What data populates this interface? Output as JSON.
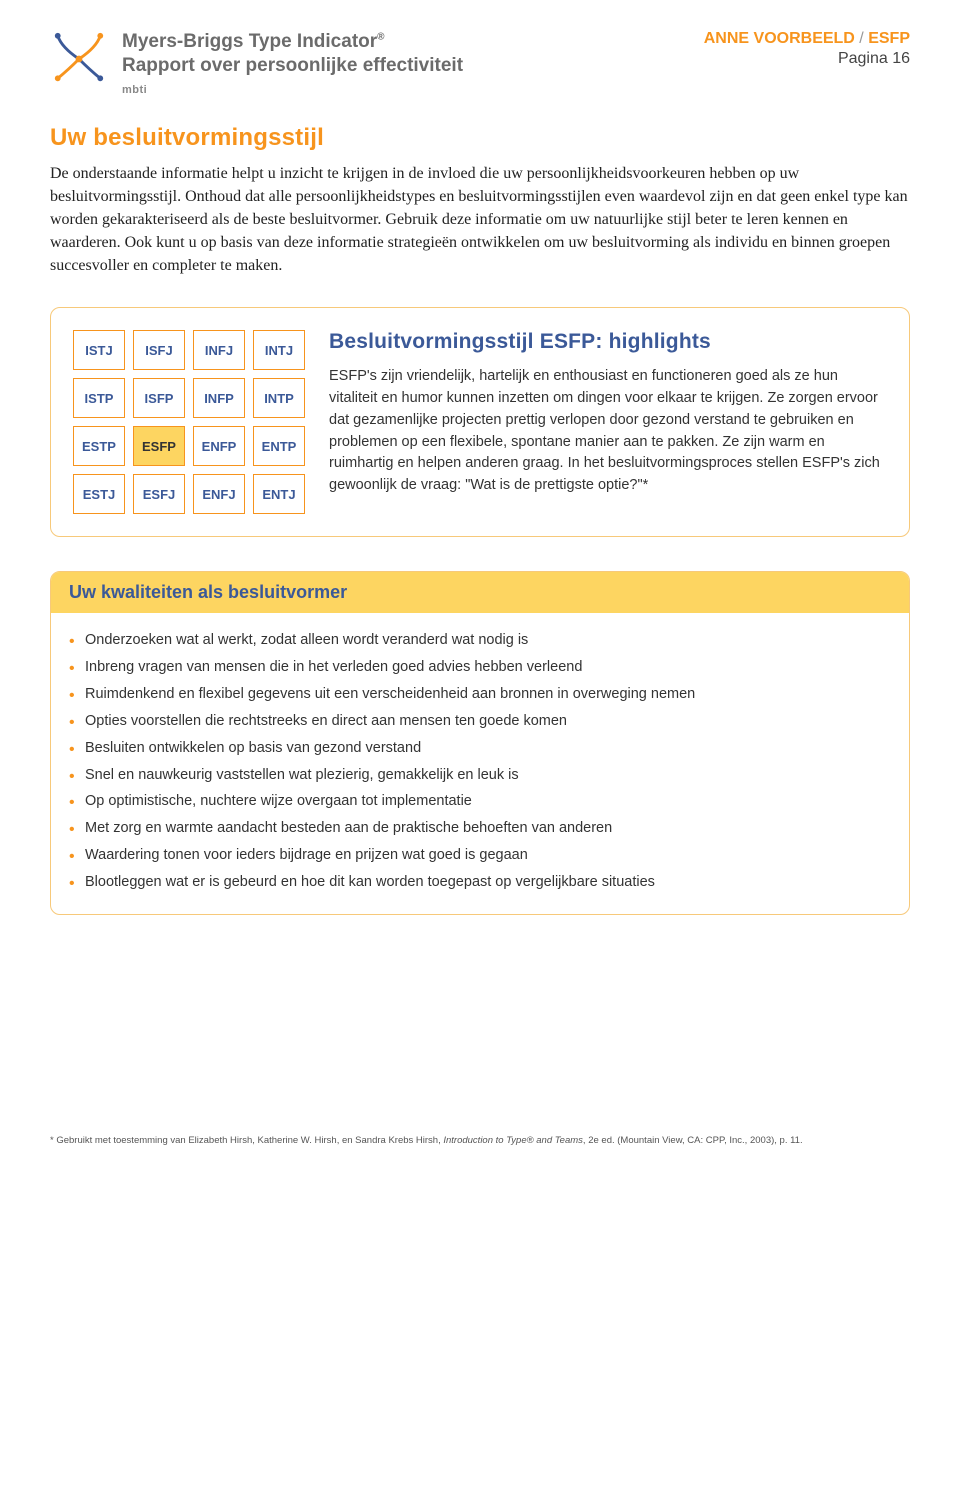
{
  "colors": {
    "accent_orange": "#f7941d",
    "accent_blue": "#3b5998",
    "panel_border": "#f7c97a",
    "highlight_yellow": "#fdd561",
    "text_gray": "#6b6b6b",
    "body_text": "#333333"
  },
  "header": {
    "brand_line1": "Myers-Briggs Type Indicator",
    "brand_reg": "®",
    "brand_line2": "Rapport over persoonlijke effectiviteit",
    "brand_tag": "mbti",
    "name": "ANNE VOORBEELD",
    "sep": " / ",
    "type": "ESFP",
    "page_label": "Pagina 16"
  },
  "section": {
    "title": "Uw besluitvormingsstijl",
    "intro": "De onderstaande informatie helpt u inzicht te krijgen in de invloed die uw persoonlijkheidsvoorkeuren hebben op uw besluitvormingsstijl. Onthoud dat alle persoonlijkheidstypes en besluitvormingsstijlen even waardevol zijn en dat geen enkel type kan worden gekarakteriseerd als de beste besluitvormer. Gebruik deze informatie om uw natuurlijke stijl beter te leren kennen en waarderen. Ook kunt u op basis van deze informatie strategieën ontwikkelen om uw besluitvorming als individu en binnen groepen succesvoller en completer te maken."
  },
  "type_grid": {
    "cells": [
      [
        "ISTJ",
        "ISFJ",
        "INFJ",
        "INTJ"
      ],
      [
        "ISTP",
        "ISFP",
        "INFP",
        "INTP"
      ],
      [
        "ESTP",
        "ESFP",
        "ENFP",
        "ENTP"
      ],
      [
        "ESTJ",
        "ESFJ",
        "ENFJ",
        "ENTJ"
      ]
    ],
    "highlighted": "ESFP"
  },
  "highlights": {
    "title": "Besluitvormingsstijl ESFP: highlights",
    "paragraph": "ESFP's zijn vriendelijk, hartelijk en enthousiast en functioneren goed als ze hun vitaliteit en humor kunnen inzetten om dingen voor elkaar te krijgen. Ze zorgen ervoor dat gezamenlijke projecten prettig verlopen door gezond verstand te gebruiken en problemen op een flexibele, spontane manier aan te pakken. Ze zijn warm en ruimhartig en helpen anderen graag. In het besluitvormingsproces stellen ESFP's zich gewoonlijk de vraag: \"Wat is de prettigste optie?\"*"
  },
  "strengths": {
    "title": "Uw kwaliteiten als besluitvormer",
    "items": [
      "Onderzoeken wat al werkt, zodat alleen wordt veranderd wat nodig is",
      "Inbreng vragen van mensen die in het verleden goed advies hebben verleend",
      "Ruimdenkend en flexibel gegevens uit een verscheidenheid aan bronnen in overweging nemen",
      "Opties voorstellen die rechtstreeks en direct aan mensen ten goede komen",
      "Besluiten ontwikkelen op basis van gezond verstand",
      "Snel en nauwkeurig vaststellen wat plezierig, gemakkelijk en leuk is",
      "Op optimistische, nuchtere wijze overgaan tot implementatie",
      "Met zorg en warmte aandacht besteden aan de praktische behoeften van anderen",
      "Waardering tonen voor ieders bijdrage en prijzen wat goed is gegaan",
      "Blootleggen wat er is gebeurd en hoe dit kan worden toegepast op vergelijkbare situaties"
    ]
  },
  "footnote": {
    "text_prefix": "* Gebruikt met toestemming van Elizabeth Hirsh, Katherine W. Hirsh, en Sandra Krebs Hirsh, ",
    "text_italic": "Introduction to Type® and Teams",
    "text_suffix": ", 2e ed. (Mountain View, CA: CPP, Inc., 2003), p. 11."
  }
}
